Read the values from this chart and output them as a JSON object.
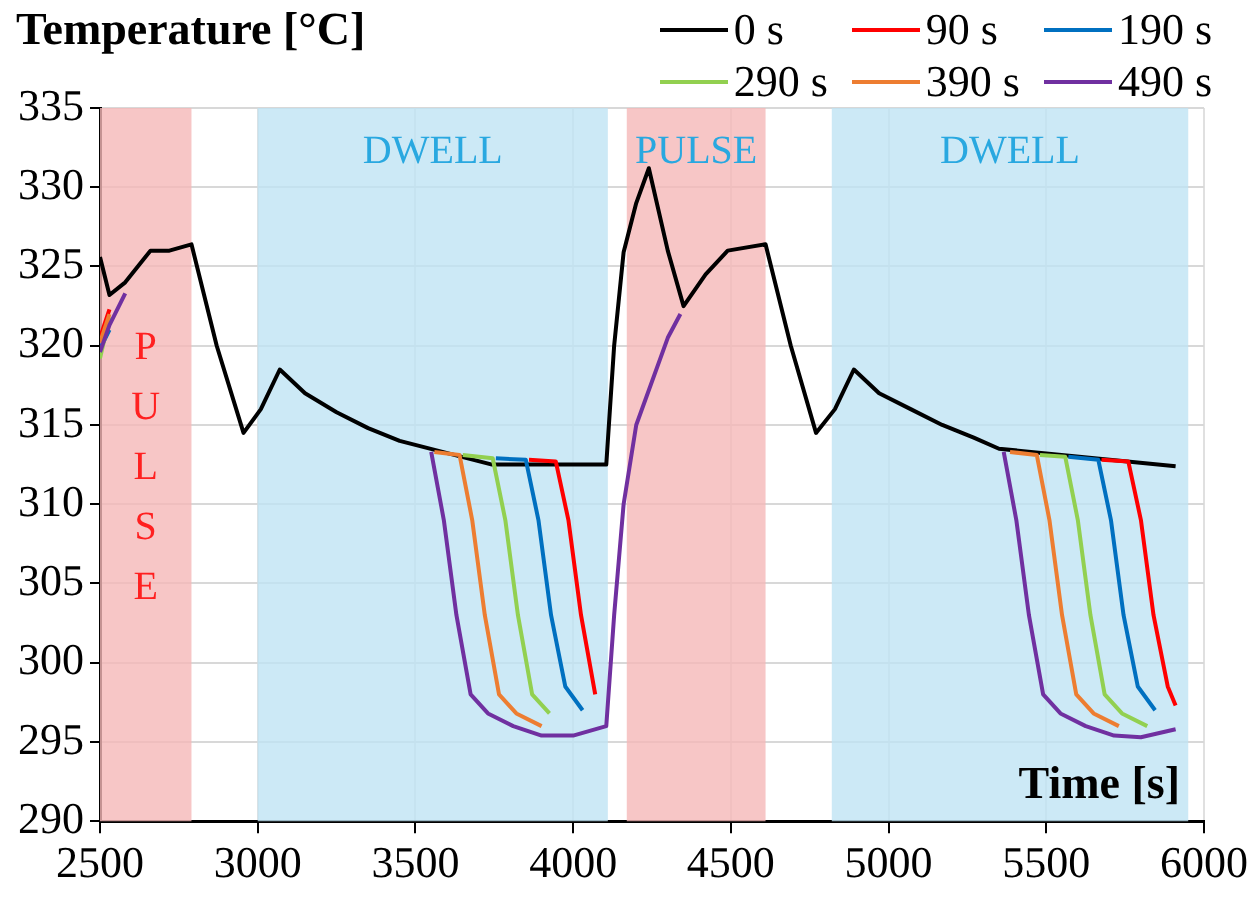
{
  "chart_data": {
    "type": "line",
    "ylabel": "Temperature [°C]",
    "xlabel": "Time [s]",
    "xlim": [
      2500,
      6000
    ],
    "xticks": [
      2500,
      3000,
      3500,
      4000,
      4500,
      5000,
      5500,
      6000
    ],
    "ylim": [
      290,
      335
    ],
    "yticks": [
      290,
      295,
      300,
      305,
      310,
      315,
      320,
      325,
      330,
      335
    ],
    "grid": true,
    "legend": "top right",
    "marker": "none",
    "line_style": "solid",
    "bands": [
      {
        "axis": "x",
        "from": 2500,
        "to": 2790,
        "label": "PULSE",
        "color": "#f5b8b8"
      },
      {
        "axis": "x",
        "from": 3000,
        "to": 4110,
        "label": "DWELL",
        "color": "#bfe4f4"
      },
      {
        "axis": "x",
        "from": 4170,
        "to": 4610,
        "label": "PULSE",
        "color": "#f5b8b8"
      },
      {
        "axis": "x",
        "from": 4820,
        "to": 5950,
        "label": "DWELL",
        "color": "#bfe4f4"
      }
    ],
    "series": [
      {
        "name": "0 s",
        "color": "#000000",
        "x": [
          2500,
          2530,
          2580,
          2660,
          2720,
          2790,
          2870,
          2955,
          3010,
          3070,
          3150,
          3250,
          3350,
          3450,
          3743,
          4105,
          4130,
          4160,
          4200,
          4240,
          4300,
          4350,
          4420,
          4490,
          4610,
          4690,
          4770,
          4830,
          4890,
          4970,
          5070,
          5170,
          5270,
          5350,
          5910
        ],
        "values": [
          325.6,
          323.2,
          324,
          326,
          326,
          326.4,
          320,
          314.5,
          316,
          318.5,
          317,
          315.8,
          314.8,
          314,
          312.5,
          312.5,
          320,
          325.9,
          329,
          331.2,
          326,
          322.5,
          324.5,
          326,
          326.4,
          320,
          314.5,
          316,
          318.5,
          317,
          316,
          315,
          314.2,
          313.5,
          312.4
        ]
      },
      {
        "name": "90 s",
        "color": "#ff0000",
        "x": [
          2500,
          2530,
          2600,
          3860,
          3945,
          3985,
          4025,
          4070,
          4250,
          5675,
          5760,
          5800,
          5840,
          5885,
          5910
        ],
        "values": [
          320.5,
          322.3,
          null,
          312.8,
          312.7,
          309,
          303,
          298,
          null,
          312.8,
          312.7,
          309,
          303,
          298.5,
          297.3
        ]
      },
      {
        "name": "190 s",
        "color": "#0070c0",
        "x": [
          2500,
          2530,
          2600,
          3755,
          3850,
          3890,
          3930,
          3975,
          4030,
          4250,
          5570,
          5665,
          5705,
          5745,
          5790,
          5845
        ],
        "values": [
          319.8,
          321,
          null,
          312.9,
          312.8,
          309,
          303,
          298.5,
          297,
          null,
          313,
          312.8,
          309,
          303,
          298.5,
          297
        ]
      },
      {
        "name": "290 s",
        "color": "#92d050",
        "x": [
          2500,
          2530,
          2600,
          3650,
          3745,
          3785,
          3825,
          3870,
          3925,
          4250,
          5480,
          5560,
          5600,
          5640,
          5685,
          5740,
          5820
        ],
        "values": [
          319.2,
          321.8,
          null,
          313.1,
          312.9,
          309,
          303,
          298,
          296.8,
          null,
          313.1,
          313,
          309,
          303,
          298,
          296.8,
          296
        ]
      },
      {
        "name": "390 s",
        "color": "#ed7d31",
        "x": [
          2500,
          2530,
          2600,
          3560,
          3640,
          3680,
          3720,
          3765,
          3820,
          3900,
          4250,
          5385,
          5470,
          5510,
          5550,
          5595,
          5650,
          5730
        ],
        "values": [
          320.2,
          322,
          null,
          313.3,
          313.1,
          309,
          303,
          298,
          296.8,
          296,
          null,
          313.3,
          313.1,
          309,
          303,
          298,
          296.8,
          296
        ]
      },
      {
        "name": "490 s",
        "color": "#7030a0",
        "x": [
          2500,
          2530,
          2580,
          3000,
          3550,
          3590,
          3630,
          3675,
          3730,
          3810,
          3900,
          4000,
          4105,
          4130,
          4160,
          4200,
          4300,
          4340,
          4800,
          5365,
          5405,
          5445,
          5490,
          5545,
          5625,
          5715,
          5800,
          5910
        ],
        "values": [
          319.6,
          321.3,
          323.3,
          null,
          313.3,
          309,
          303,
          298,
          296.8,
          296,
          295.4,
          295.4,
          296,
          303,
          310,
          315,
          320.5,
          322,
          null,
          313.3,
          309,
          303,
          298,
          296.8,
          296,
          295.4,
          295.3,
          295.8
        ]
      }
    ]
  }
}
